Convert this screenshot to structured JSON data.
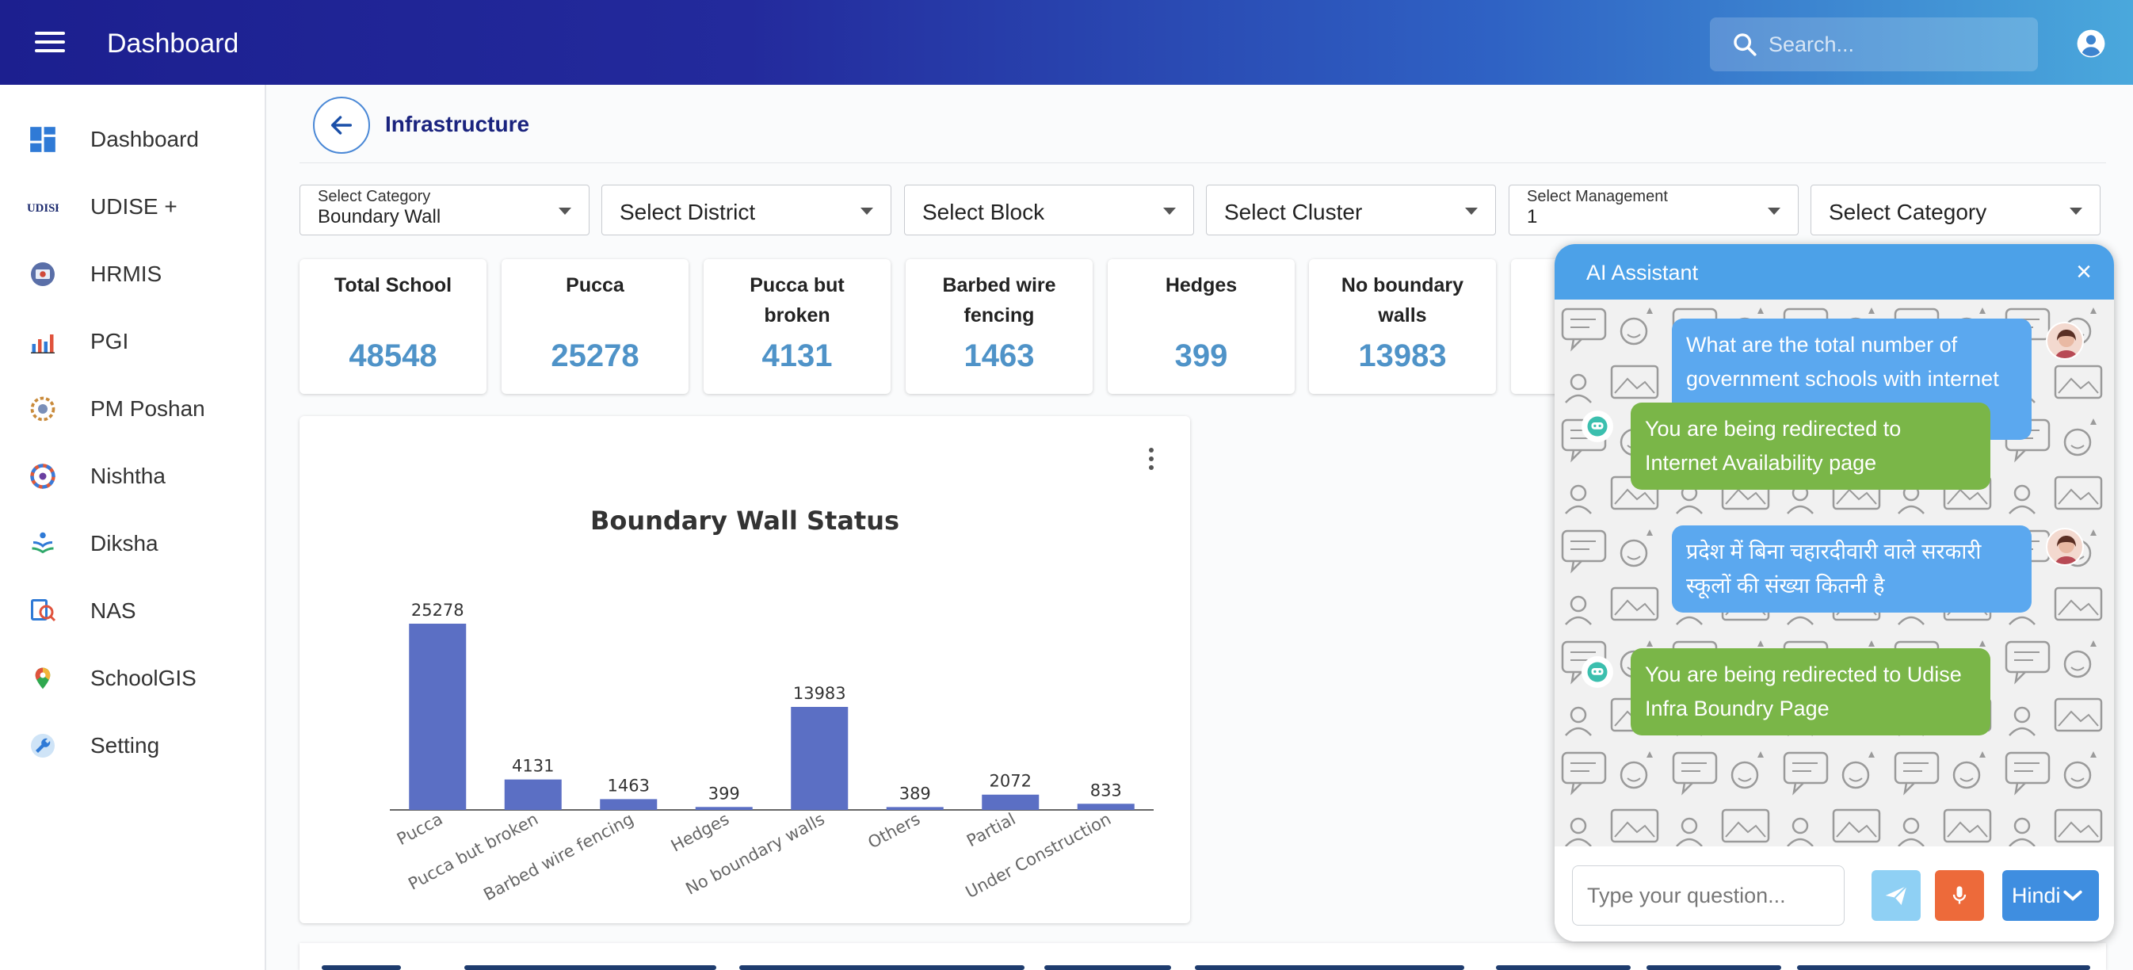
{
  "app": {
    "title": "Dashboard"
  },
  "search": {
    "placeholder": "Search..."
  },
  "sidebar": {
    "items": [
      {
        "label": "Dashboard",
        "icon": "dashboard-grid-icon"
      },
      {
        "label": "UDISE +",
        "icon": "udise-logo-icon"
      },
      {
        "label": "HRMIS",
        "icon": "hrmis-icon"
      },
      {
        "label": "PGI",
        "icon": "bar-chart-icon"
      },
      {
        "label": "PM Poshan",
        "icon": "pm-poshan-icon"
      },
      {
        "label": "Nishtha",
        "icon": "nishtha-icon"
      },
      {
        "label": "Diksha",
        "icon": "diksha-icon"
      },
      {
        "label": "NAS",
        "icon": "nas-icon"
      },
      {
        "label": "SchoolGIS",
        "icon": "map-pin-icon"
      },
      {
        "label": "Setting",
        "icon": "wrench-icon"
      }
    ]
  },
  "page": {
    "heading": "Infrastructure"
  },
  "filters": [
    {
      "label": "Select Category",
      "value": "Boundary Wall"
    },
    {
      "label": "",
      "value": "Select District"
    },
    {
      "label": "",
      "value": "Select Block"
    },
    {
      "label": "",
      "value": "Select Cluster"
    },
    {
      "label": "Select Management",
      "value": "1"
    },
    {
      "label": "",
      "value": "Select Category"
    }
  ],
  "stats": [
    {
      "label": "Total School",
      "value": "48548"
    },
    {
      "label": "Pucca",
      "value": "25278"
    },
    {
      "label": "Pucca but broken",
      "value": "4131"
    },
    {
      "label": "Barbed wire fencing",
      "value": "1463"
    },
    {
      "label": "Hedges",
      "value": "399"
    },
    {
      "label": "No boundary walls",
      "value": "13983"
    }
  ],
  "chart_data": {
    "type": "bar",
    "title": "Boundary Wall Status",
    "categories": [
      "Pucca",
      "Pucca but broken",
      "Barbed wire fencing",
      "Hedges",
      "No boundary walls",
      "Others",
      "Partial",
      "Under Construction"
    ],
    "values": [
      25278,
      4131,
      1463,
      399,
      13983,
      389,
      2072,
      833
    ],
    "xlabel": "",
    "ylabel": "",
    "ylim": [
      0,
      25278
    ],
    "grid": false,
    "color": "#5b6fc4"
  },
  "assistant": {
    "title": "AI Assistant",
    "messages": [
      {
        "role": "user",
        "text": "What are the total number of government schools with internet in Chhattisgarh?"
      },
      {
        "role": "bot",
        "text": "You are being redirected to Internet Availability page"
      },
      {
        "role": "user",
        "text": "प्रदेश में बिना चहारदीवारी वाले सरकारी स्कूलों की संख्या कितनी है"
      },
      {
        "role": "bot",
        "text": "You are being redirected to Udise Infra Boundry Page"
      }
    ],
    "input_placeholder": "Type your question...",
    "language": "Hindi",
    "colors": {
      "header": "#4ca1e8",
      "user_bubble": "#5ba8ef",
      "bot_bubble": "#7ab648",
      "mic": "#ed6a3a"
    }
  }
}
